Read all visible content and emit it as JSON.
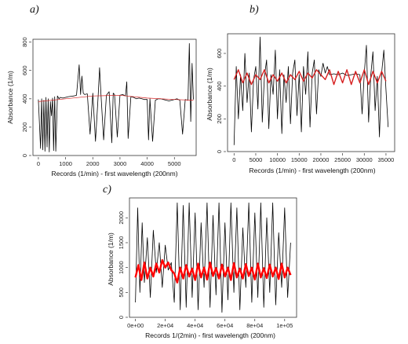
{
  "panels": [
    {
      "label": "a)",
      "xlabel": "Records (1/min) - first wavelength (200nm)",
      "ylabel": "Absorbance (1/m)"
    },
    {
      "label": "b)",
      "xlabel": "Records (1/min) - first wavelength (200nm)",
      "ylabel": "Absorbance (1/m)"
    },
    {
      "label": "c)",
      "xlabel": "Records 1/(2min) - first wavelength (200nm)",
      "ylabel": "Absorbance (1/m)"
    }
  ],
  "chart_data": [
    {
      "type": "line",
      "panel": "a)",
      "xlabel": "Records (1/min) - first wavelength (200nm)",
      "ylabel": "Absorbance (1/m)",
      "xlim": [
        -200,
        5800
      ],
      "ylim": [
        0,
        820
      ],
      "x_ticks": [
        0,
        1000,
        2000,
        3000,
        4000,
        5000
      ],
      "x_tick_labels": [
        "0",
        "1000",
        "2000",
        "3000",
        "4000",
        "5000"
      ],
      "y_ticks": [
        0,
        200,
        400,
        600,
        800
      ],
      "y_tick_labels": [
        "0",
        "200",
        "400",
        "600",
        "800"
      ],
      "series": [
        {
          "color": "#000000",
          "x": [
            0,
            80,
            120,
            160,
            200,
            240,
            280,
            320,
            360,
            400,
            440,
            480,
            520,
            560,
            600,
            640,
            700,
            760,
            800,
            900,
            1000,
            1100,
            1200,
            1300,
            1400,
            1500,
            1550,
            1600,
            1650,
            1700,
            1800,
            1900,
            2000,
            2100,
            2200,
            2250,
            2300,
            2400,
            2500,
            2600,
            2700,
            2750,
            2800,
            2900,
            3000,
            3100,
            3200,
            3250,
            3300,
            3400,
            3500,
            3600,
            3700,
            3800,
            3900,
            4000,
            4050,
            4100,
            4200,
            4300,
            4400,
            4500,
            4600,
            4700,
            4800,
            4900,
            5000,
            5100,
            5200,
            5300,
            5400,
            5500,
            5550,
            5600,
            5650,
            5700
          ],
          "y": [
            395,
            50,
            400,
            40,
            390,
            30,
            410,
            60,
            400,
            25,
            380,
            280,
            405,
            35,
            415,
            30,
            420,
            400,
            410,
            405,
            410,
            415,
            418,
            420,
            425,
            640,
            430,
            560,
            440,
            430,
            435,
            150,
            440,
            100,
            430,
            620,
            430,
            110,
            425,
            450,
            90,
            440,
            430,
            130,
            425,
            430,
            420,
            520,
            120,
            415,
            410,
            400,
            405,
            400,
            395,
            395,
            110,
            400,
            100,
            390,
            400,
            400,
            395,
            390,
            385,
            390,
            395,
            400,
            390,
            150,
            395,
            390,
            790,
            240,
            650,
            395
          ]
        },
        {
          "color": "#d62020",
          "x": [
            0,
            1000,
            2000,
            3000,
            4000,
            5000,
            5700
          ],
          "y": [
            380,
            400,
            420,
            425,
            405,
            395,
            390
          ]
        }
      ]
    },
    {
      "type": "line",
      "panel": "b)",
      "xlabel": "Records (1/min) - first wavelength (200nm)",
      "ylabel": "Absorbance (1/m)",
      "xlim": [
        -1500,
        37000
      ],
      "ylim": [
        0,
        720
      ],
      "x_ticks": [
        0,
        5000,
        10000,
        15000,
        20000,
        25000,
        30000,
        35000
      ],
      "x_tick_labels": [
        "0",
        "5000",
        "10000",
        "15000",
        "20000",
        "25000",
        "30000",
        "35000"
      ],
      "y_ticks": [
        0,
        200,
        400,
        600
      ],
      "y_tick_labels": [
        "0",
        "200",
        "400",
        "600"
      ],
      "series": [
        {
          "color": "#000000",
          "x": [
            0,
            500,
            1000,
            1500,
            2000,
            2500,
            3000,
            3500,
            4000,
            4500,
            5000,
            5500,
            6000,
            6500,
            7000,
            7500,
            8000,
            8500,
            9000,
            9500,
            10000,
            10500,
            11000,
            11500,
            12000,
            12500,
            13000,
            13500,
            14000,
            14500,
            15000,
            15500,
            16000,
            16500,
            17000,
            17500,
            18000,
            18500,
            19000,
            19500,
            20000,
            20500,
            21000,
            21500,
            22000,
            23000,
            24000,
            25000,
            26000,
            27000,
            28000,
            29000,
            29500,
            30000,
            30500,
            31000,
            31500,
            32000,
            32500,
            33000,
            33500,
            34000,
            34500,
            35000,
            35500
          ],
          "y": [
            40,
            520,
            200,
            470,
            250,
            600,
            300,
            480,
            120,
            440,
            520,
            260,
            700,
            180,
            460,
            560,
            140,
            470,
            350,
            620,
            200,
            500,
            110,
            470,
            300,
            520,
            170,
            480,
            560,
            220,
            470,
            120,
            520,
            350,
            610,
            150,
            480,
            560,
            230,
            500,
            460,
            540,
            480,
            520,
            470,
            475,
            470,
            480,
            465,
            470,
            475,
            470,
            230,
            480,
            650,
            180,
            470,
            610,
            250,
            460,
            90,
            480,
            620,
            380,
            150
          ]
        },
        {
          "color": "#d62020",
          "x": [
            0,
            1000,
            2000,
            3000,
            4000,
            5000,
            6000,
            7000,
            8000,
            9000,
            10000,
            11000,
            12000,
            13000,
            14000,
            15000,
            16000,
            17000,
            18000,
            19000,
            20000,
            21000,
            22000,
            23000,
            24000,
            25000,
            26000,
            27000,
            28000,
            29000,
            30000,
            31000,
            32000,
            33000,
            34000,
            35000
          ],
          "y": [
            440,
            500,
            420,
            480,
            410,
            470,
            440,
            500,
            420,
            470,
            430,
            480,
            420,
            470,
            440,
            490,
            430,
            480,
            450,
            500,
            470,
            440,
            500,
            410,
            490,
            420,
            500,
            410,
            490,
            420,
            500,
            410,
            490,
            420,
            490,
            430
          ]
        }
      ]
    },
    {
      "type": "line",
      "panel": "c)",
      "xlabel": "Records 1/(2min) - first wavelength (200nm)",
      "ylabel": "Absorbance (1/m)",
      "xlim": [
        -4000,
        108000
      ],
      "ylim": [
        0,
        2400
      ],
      "x_ticks": [
        0,
        20000,
        40000,
        60000,
        80000,
        100000
      ],
      "x_tick_labels": [
        "0e+00",
        "2e+04",
        "4e+04",
        "6e+04",
        "8e+04",
        "1e+05"
      ],
      "y_ticks": [
        0,
        500,
        1000,
        1500,
        2000
      ],
      "y_tick_labels": [
        "0",
        "500",
        "1000",
        "1500",
        "2000"
      ],
      "series": [
        {
          "color": "#000000",
          "x": [
            0,
            1500,
            3000,
            4500,
            6000,
            8000,
            10000,
            12000,
            14000,
            16000,
            18000,
            20000,
            22000,
            24000,
            26000,
            28000,
            30000,
            32000,
            34000,
            36000,
            38000,
            40000,
            42000,
            44000,
            46000,
            48000,
            50000,
            52000,
            54000,
            56000,
            58000,
            60000,
            62000,
            64000,
            66000,
            68000,
            70000,
            72000,
            74000,
            76000,
            78000,
            80000,
            82000,
            84000,
            86000,
            88000,
            90000,
            92000,
            94000,
            96000,
            98000,
            100000,
            102000,
            104000
          ],
          "y": [
            300,
            2200,
            500,
            1900,
            700,
            1600,
            400,
            1750,
            900,
            1500,
            600,
            1450,
            950,
            1100,
            300,
            2300,
            150,
            2250,
            200,
            2300,
            400,
            2100,
            150,
            1900,
            600,
            2300,
            200,
            2050,
            450,
            2300,
            100,
            1900,
            350,
            2300,
            500,
            2200,
            150,
            1800,
            600,
            2300,
            300,
            2100,
            400,
            2300,
            200,
            2000,
            500,
            2300,
            250,
            1700,
            600,
            2200,
            400,
            1500
          ]
        },
        {
          "color": "#ff0000",
          "x": [
            0,
            2000,
            4000,
            6000,
            8000,
            10000,
            12000,
            14000,
            16000,
            18000,
            20000,
            22000,
            24000,
            26000,
            28000,
            30000,
            32000,
            34000,
            36000,
            38000,
            40000,
            42000,
            44000,
            46000,
            48000,
            50000,
            52000,
            54000,
            56000,
            58000,
            60000,
            62000,
            64000,
            66000,
            68000,
            70000,
            72000,
            74000,
            76000,
            78000,
            80000,
            82000,
            84000,
            86000,
            88000,
            90000,
            92000,
            94000,
            96000,
            98000,
            100000,
            102000,
            104000
          ],
          "y": [
            800,
            1050,
            750,
            1100,
            780,
            1000,
            820,
            1080,
            900,
            1150,
            1000,
            1100,
            950,
            880,
            700,
            1000,
            780,
            1050,
            820,
            980,
            750,
            1080,
            800,
            1000,
            760,
            1100,
            830,
            990,
            780,
            1060,
            820,
            1000,
            750,
            1090,
            800,
            980,
            780,
            1070,
            830,
            1000,
            760,
            1080,
            800,
            990,
            790,
            1060,
            820,
            1000,
            770,
            1080,
            800,
            1000,
            850
          ]
        }
      ]
    }
  ]
}
